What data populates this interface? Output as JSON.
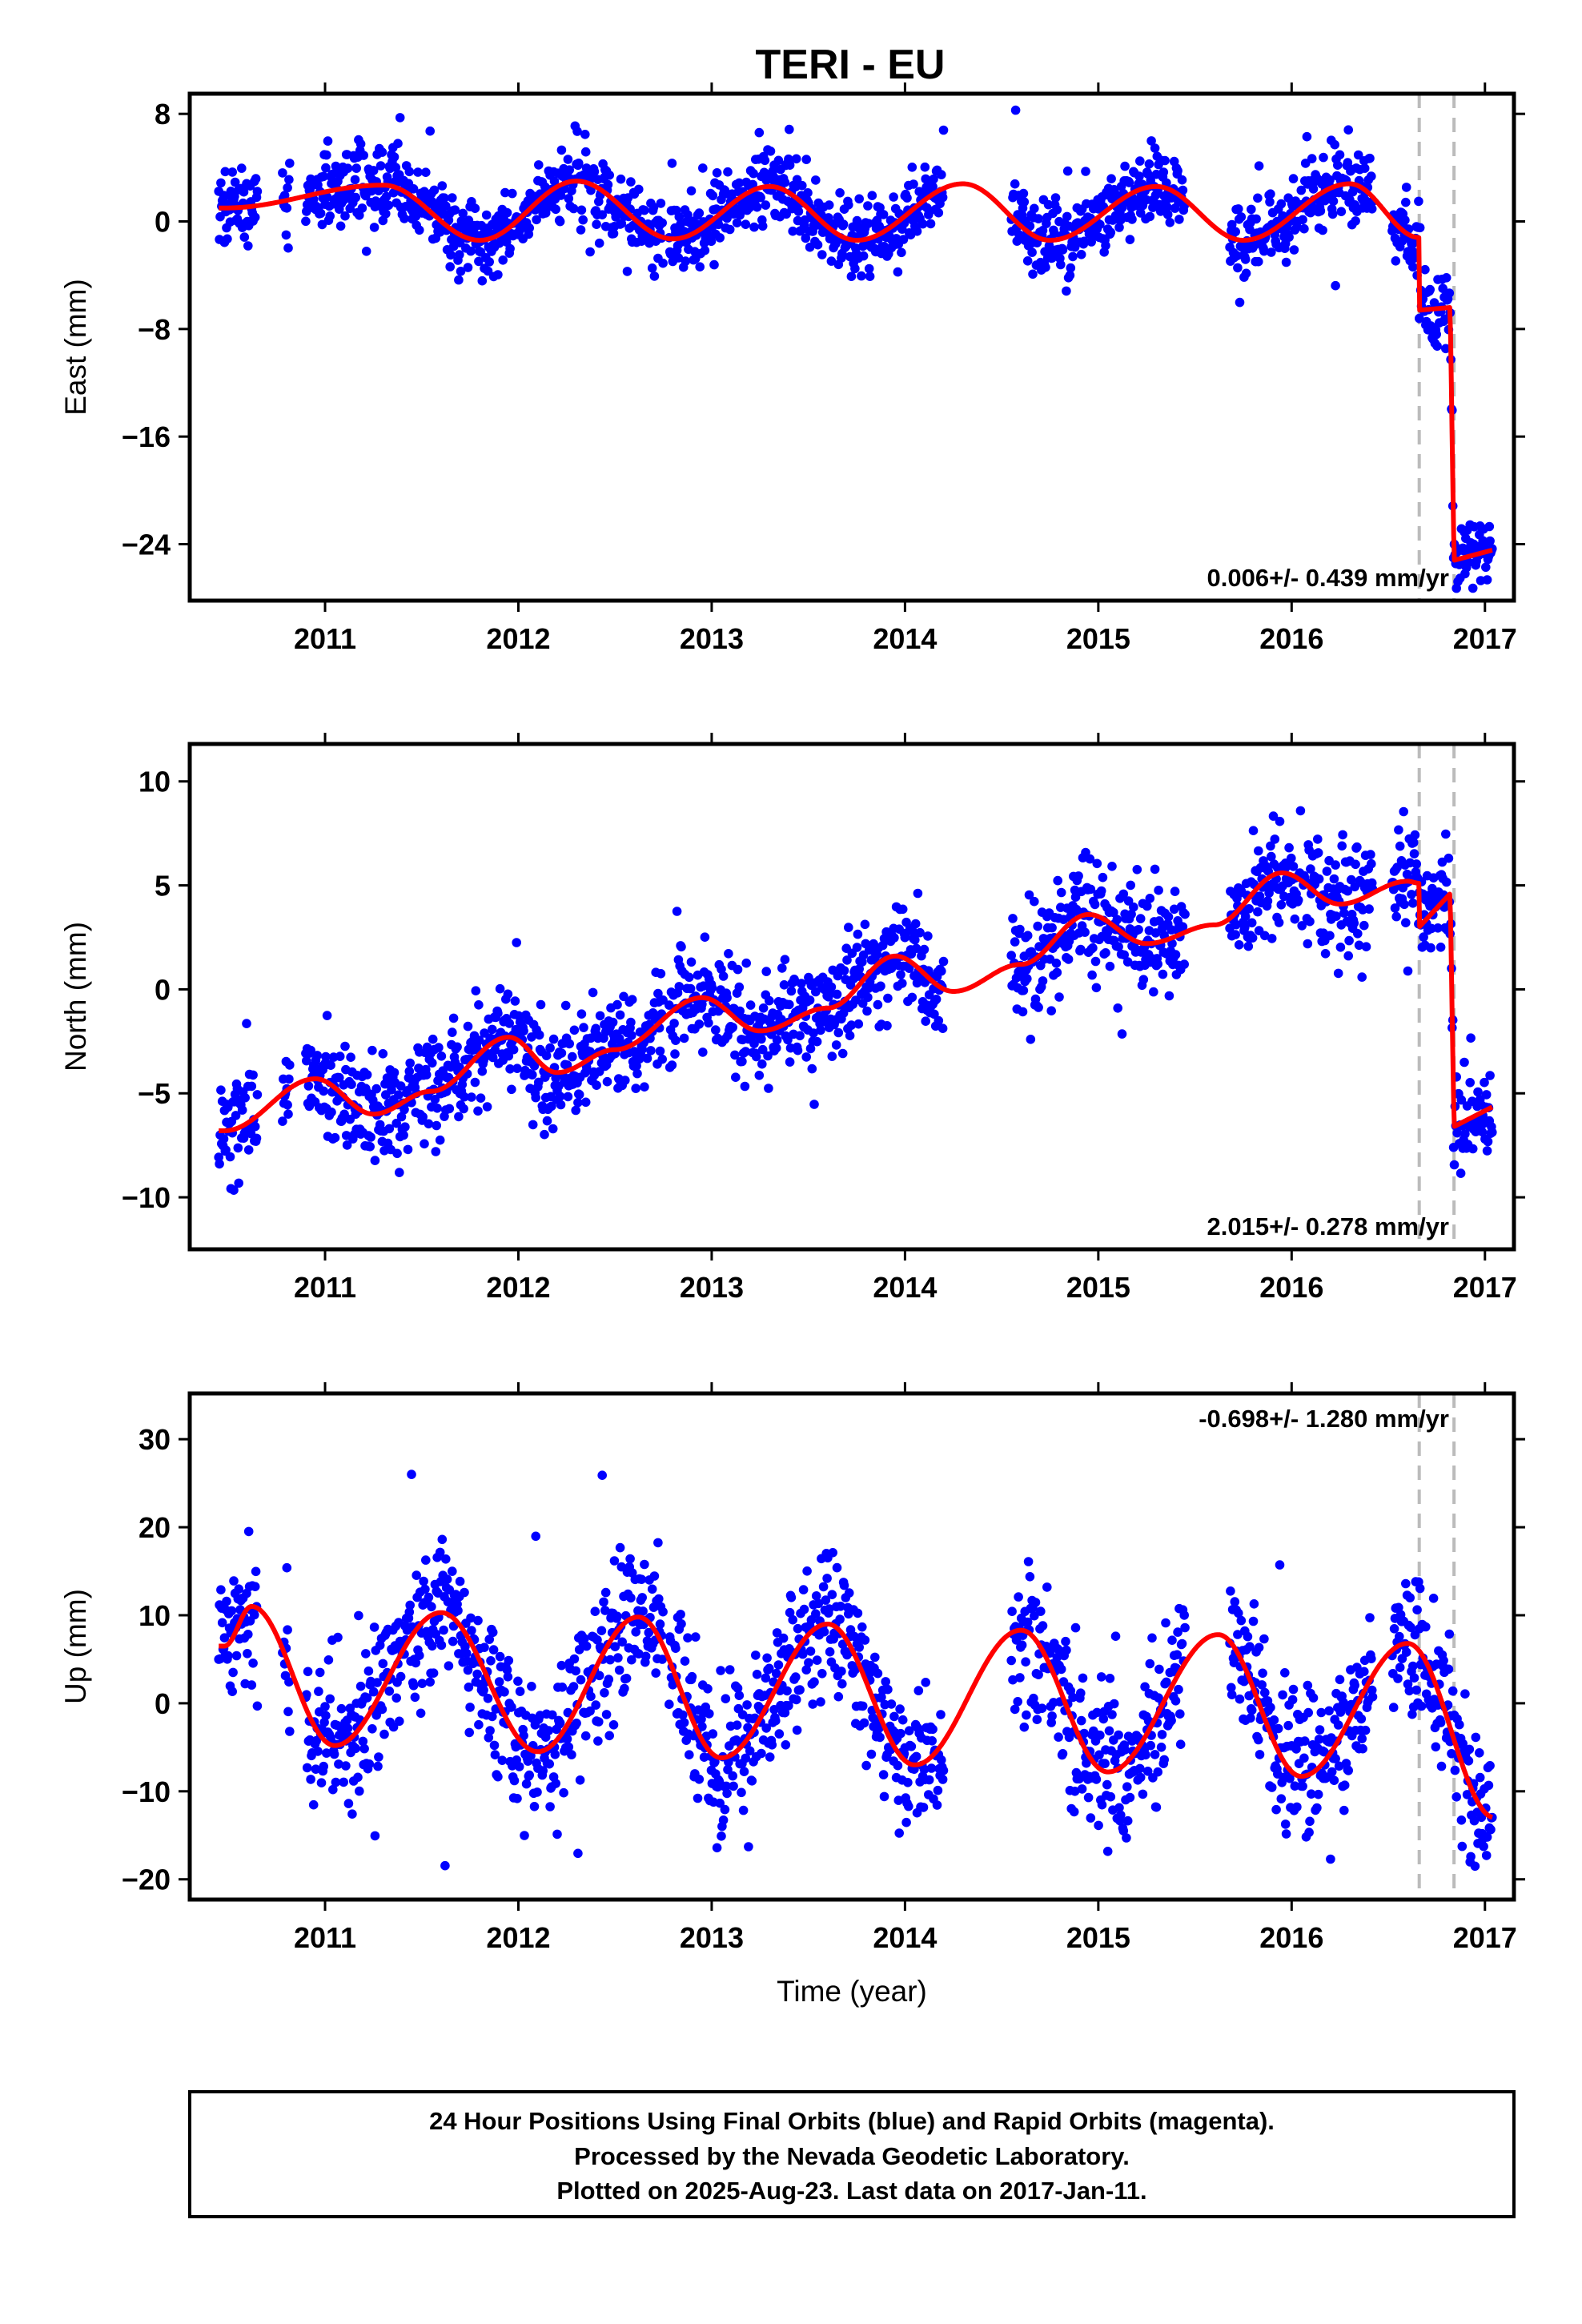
{
  "title": "TERI - EU",
  "colors": {
    "final_orbits": "#0000ff",
    "model": "#ff0000",
    "steps": "#bbbbbb"
  },
  "footer": {
    "line1": "24 Hour Positions Using Final Orbits (blue) and Rapid Orbits (magenta).",
    "line2": "Processed by the Nevada Geodetic Laboratory.",
    "line3": "Plotted on 2025-Aug-23. Last data on 2017-Jan-11."
  },
  "chart_data": [
    {
      "type": "scatter",
      "component": "east",
      "ylabel": "East (mm)",
      "xlabel": "",
      "rate_text": "0.006+/- 0.439 mm/yr",
      "rate_position": "bottom-right",
      "xlim": [
        2010.3,
        2017.15
      ],
      "ylim": [
        -28.2,
        9.5
      ],
      "xticks": [
        2011,
        2012,
        2013,
        2014,
        2015,
        2016,
        2017
      ],
      "yticks": [
        8,
        0,
        -8,
        -16,
        -24
      ],
      "step_epochs": [
        2016.66,
        2016.84
      ],
      "seasonal_model": {
        "annual_amp": 2.2,
        "annual_peak": 2011.3,
        "semiannual_amp": 0.6,
        "offset": 0.4,
        "anchors": [
          [
            2010.48,
            1.0
          ],
          [
            2011.3,
            2.7
          ],
          [
            2011.8,
            -1.4
          ],
          [
            2012.3,
            3.0
          ],
          [
            2012.8,
            -1.3
          ],
          [
            2013.3,
            2.6
          ],
          [
            2013.75,
            -1.4
          ],
          [
            2014.3,
            2.8
          ],
          [
            2014.75,
            -1.4
          ],
          [
            2015.3,
            2.6
          ],
          [
            2015.75,
            -1.4
          ],
          [
            2016.3,
            2.8
          ],
          [
            2016.66,
            -1.2
          ]
        ],
        "step_levels": [
          [
            2016.66,
            -6.6
          ],
          [
            2016.82,
            -6.4
          ],
          [
            2016.84,
            -25.2
          ],
          [
            2017.05,
            -24.4
          ]
        ]
      },
      "series": [
        {
          "name": "Final Orbits",
          "daily_scatter_mm": 1.4,
          "segments": [
            [
              2010.45,
              2010.65
            ],
            [
              2010.78,
              2010.82
            ],
            [
              2010.9,
              2012.75
            ],
            [
              2012.78,
              2014.2
            ],
            [
              2014.55,
              2015.45
            ],
            [
              2015.68,
              2016.42
            ],
            [
              2016.52,
              2017.04
            ]
          ]
        }
      ]
    },
    {
      "type": "scatter",
      "component": "north",
      "ylabel": "North (mm)",
      "xlabel": "",
      "rate_text": "2.015+/- 0.278 mm/yr",
      "rate_position": "bottom-right",
      "xlim": [
        2010.3,
        2017.15
      ],
      "ylim": [
        -12.5,
        11.8
      ],
      "xticks": [
        2011,
        2012,
        2013,
        2014,
        2015,
        2016,
        2017
      ],
      "yticks": [
        10,
        5,
        0,
        -5,
        -10
      ],
      "step_epochs": [
        2016.66,
        2016.84
      ],
      "seasonal_model": {
        "anchors": [
          [
            2010.48,
            -6.8
          ],
          [
            2010.95,
            -4.3
          ],
          [
            2011.25,
            -6.0
          ],
          [
            2011.55,
            -4.9
          ],
          [
            2011.95,
            -2.3
          ],
          [
            2012.2,
            -4.0
          ],
          [
            2012.5,
            -2.9
          ],
          [
            2012.95,
            -0.4
          ],
          [
            2013.25,
            -2.0
          ],
          [
            2013.6,
            -0.9
          ],
          [
            2013.95,
            1.6
          ],
          [
            2014.25,
            -0.1
          ],
          [
            2014.6,
            1.2
          ],
          [
            2014.95,
            3.6
          ],
          [
            2015.25,
            2.2
          ],
          [
            2015.6,
            3.1
          ],
          [
            2015.95,
            5.6
          ],
          [
            2016.25,
            4.1
          ],
          [
            2016.6,
            5.2
          ],
          [
            2016.66,
            5.1
          ]
        ],
        "step_levels": [
          [
            2016.66,
            3.0
          ],
          [
            2016.82,
            4.6
          ],
          [
            2016.84,
            -6.6
          ],
          [
            2017.05,
            -5.6
          ]
        ]
      },
      "series": [
        {
          "name": "Final Orbits",
          "daily_scatter_mm": 1.3,
          "segments": [
            [
              2010.45,
              2010.65
            ],
            [
              2010.78,
              2010.82
            ],
            [
              2010.9,
              2012.75
            ],
            [
              2012.78,
              2014.2
            ],
            [
              2014.55,
              2015.45
            ],
            [
              2015.68,
              2016.42
            ],
            [
              2016.52,
              2017.04
            ]
          ]
        }
      ]
    },
    {
      "type": "scatter",
      "component": "up",
      "ylabel": "Up (mm)",
      "xlabel": "Time (year)",
      "rate_text": "-0.698+/- 1.280 mm/yr",
      "rate_position": "top-right",
      "xlim": [
        2010.3,
        2017.15
      ],
      "ylim": [
        -22.3,
        35.2
      ],
      "xticks": [
        2011,
        2012,
        2013,
        2014,
        2015,
        2016,
        2017
      ],
      "yticks": [
        30,
        20,
        10,
        0,
        -10,
        -20
      ],
      "step_epochs": [
        2016.66,
        2016.84
      ],
      "seasonal_model": {
        "anchors": [
          [
            2010.48,
            6.5
          ],
          [
            2010.62,
            11.0
          ],
          [
            2011.05,
            -4.8
          ],
          [
            2011.6,
            10.3
          ],
          [
            2012.1,
            -5.5
          ],
          [
            2012.62,
            9.8
          ],
          [
            2013.05,
            -6.2
          ],
          [
            2013.6,
            9.0
          ],
          [
            2014.05,
            -7.0
          ],
          [
            2014.6,
            8.3
          ],
          [
            2015.05,
            -7.8
          ],
          [
            2015.62,
            7.8
          ],
          [
            2016.05,
            -8.3
          ],
          [
            2016.6,
            6.8
          ],
          [
            2017.05,
            -13.0
          ]
        ]
      },
      "series": [
        {
          "name": "Final Orbits",
          "daily_scatter_mm": 4.2,
          "segments": [
            [
              2010.45,
              2010.65
            ],
            [
              2010.78,
              2010.82
            ],
            [
              2010.9,
              2012.75
            ],
            [
              2012.78,
              2014.2
            ],
            [
              2014.55,
              2015.45
            ],
            [
              2015.68,
              2016.42
            ],
            [
              2016.52,
              2017.04
            ]
          ]
        }
      ]
    }
  ]
}
